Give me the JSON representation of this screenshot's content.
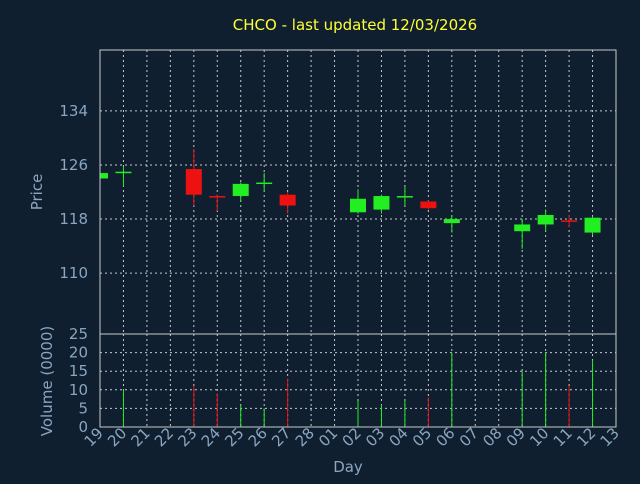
{
  "title": "CHCO - last updated 12/03/2026",
  "colors": {
    "background": "#0f1f30",
    "title": "#ffff33",
    "axis_text": "#8aa6c0",
    "frame": "#c8c8c8",
    "grid": "#c8c8c8",
    "up": "#22ee22",
    "down": "#ee1111"
  },
  "chart_data": [
    {
      "type": "candlestick",
      "ylabel": "Price",
      "ylim": [
        101,
        143
      ],
      "yticks": [
        110,
        118,
        126,
        134
      ],
      "grid": true,
      "categories": [
        "19",
        "20",
        "21",
        "22",
        "23",
        "24",
        "25",
        "26",
        "27",
        "28",
        "01",
        "02",
        "03",
        "04",
        "05",
        "06",
        "07",
        "08",
        "09",
        "10",
        "11",
        "12",
        "13"
      ],
      "candles": [
        {
          "x": "19",
          "open": 124.0,
          "close": 124.8,
          "high": 125.0,
          "low": 123.8,
          "dir": "up"
        },
        {
          "x": "20",
          "open": 124.8,
          "close": 125.0,
          "high": 125.8,
          "low": 122.8,
          "dir": "up"
        },
        {
          "x": "23",
          "open": 125.4,
          "close": 121.6,
          "high": 128.4,
          "low": 120.0,
          "dir": "down"
        },
        {
          "x": "24",
          "open": 121.4,
          "close": 121.2,
          "high": 121.6,
          "low": 119.2,
          "dir": "down"
        },
        {
          "x": "25",
          "open": 121.4,
          "close": 123.2,
          "high": 123.4,
          "low": 120.6,
          "dir": "up"
        },
        {
          "x": "26",
          "open": 123.2,
          "close": 123.4,
          "high": 124.8,
          "low": 122.2,
          "dir": "up"
        },
        {
          "x": "27",
          "open": 121.6,
          "close": 120.0,
          "high": 122.0,
          "low": 118.8,
          "dir": "down"
        },
        {
          "x": "02",
          "open": 119.0,
          "close": 121.0,
          "high": 122.4,
          "low": 118.8,
          "dir": "up"
        },
        {
          "x": "03",
          "open": 119.4,
          "close": 121.4,
          "high": 121.6,
          "low": 118.8,
          "dir": "up"
        },
        {
          "x": "04",
          "open": 121.2,
          "close": 121.4,
          "high": 122.8,
          "low": 120.0,
          "dir": "up"
        },
        {
          "x": "05",
          "open": 120.6,
          "close": 119.6,
          "high": 120.8,
          "low": 119.4,
          "dir": "down"
        },
        {
          "x": "06",
          "open": 117.4,
          "close": 118.0,
          "high": 118.6,
          "low": 116.0,
          "dir": "up"
        },
        {
          "x": "09",
          "open": 116.2,
          "close": 117.2,
          "high": 118.0,
          "low": 113.6,
          "dir": "up"
        },
        {
          "x": "10",
          "open": 117.2,
          "close": 118.6,
          "high": 119.4,
          "low": 116.2,
          "dir": "up"
        },
        {
          "x": "11",
          "open": 117.8,
          "close": 117.6,
          "high": 118.6,
          "low": 116.8,
          "dir": "down"
        },
        {
          "x": "12",
          "open": 116.0,
          "close": 118.2,
          "high": 118.4,
          "low": 115.6,
          "dir": "up"
        }
      ]
    },
    {
      "type": "bar",
      "xlabel": "Day",
      "ylabel": "Volume (0000)",
      "ylim": [
        0,
        25
      ],
      "yticks": [
        0,
        5,
        10,
        15,
        20,
        25
      ],
      "grid": true,
      "categories": [
        "19",
        "20",
        "21",
        "22",
        "23",
        "24",
        "25",
        "26",
        "27",
        "28",
        "01",
        "02",
        "03",
        "04",
        "05",
        "06",
        "07",
        "08",
        "09",
        "10",
        "11",
        "12",
        "13"
      ],
      "bars": [
        {
          "x": "20",
          "value": 10,
          "dir": "up"
        },
        {
          "x": "23",
          "value": 11,
          "dir": "down"
        },
        {
          "x": "24",
          "value": 9,
          "dir": "down"
        },
        {
          "x": "25",
          "value": 6,
          "dir": "up"
        },
        {
          "x": "26",
          "value": 5,
          "dir": "up"
        },
        {
          "x": "27",
          "value": 13,
          "dir": "down"
        },
        {
          "x": "02",
          "value": 7,
          "dir": "up"
        },
        {
          "x": "03",
          "value": 6,
          "dir": "up"
        },
        {
          "x": "04",
          "value": 7,
          "dir": "up"
        },
        {
          "x": "05",
          "value": 8,
          "dir": "down"
        },
        {
          "x": "06",
          "value": 20,
          "dir": "up"
        },
        {
          "x": "09",
          "value": 15,
          "dir": "up"
        },
        {
          "x": "10",
          "value": 20,
          "dir": "up"
        },
        {
          "x": "11",
          "value": 11,
          "dir": "down"
        },
        {
          "x": "12",
          "value": 18,
          "dir": "up"
        }
      ]
    }
  ]
}
